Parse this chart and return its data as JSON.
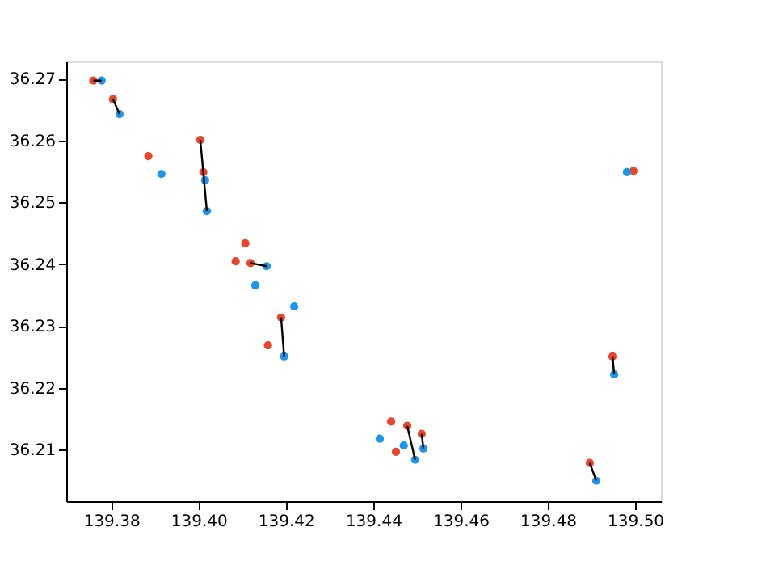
{
  "chart_data": {
    "type": "scatter",
    "xlim": [
      139.3697,
      139.5059
    ],
    "ylim": [
      36.2017,
      36.2728
    ],
    "xticks": [
      139.38,
      {
        "value": 139.4,
        "label": "139.40"
      },
      139.42,
      139.44,
      139.46,
      139.48,
      {
        "value": 139.5,
        "label": "139.50"
      }
    ],
    "yticks": [
      36.21,
      36.22,
      36.23,
      36.24,
      36.25,
      36.26,
      36.27
    ],
    "grid": false,
    "series": [
      {
        "color": "#e8452c",
        "x": [
          139.3759,
          139.3804,
          139.3885,
          139.4004,
          139.4011,
          139.4085,
          139.4107,
          139.4119,
          139.4189,
          139.4159,
          139.4441,
          139.4478,
          139.4511,
          139.4452,
          139.4896,
          139.4948,
          139.4996
        ],
        "values": [
          36.2697,
          36.2667,
          36.2575,
          36.2601,
          36.2549,
          36.2405,
          36.2434,
          36.2402,
          36.2314,
          36.2269,
          36.2146,
          36.2139,
          36.2126,
          36.2097,
          36.2079,
          36.2251,
          36.2551
        ]
      },
      {
        "color": "#1a96f0",
        "x": [
          139.3778,
          139.3819,
          139.3915,
          139.4015,
          139.4019,
          139.4156,
          139.413,
          139.4219,
          139.4196,
          139.4415,
          139.447,
          139.4496,
          139.4515,
          139.4911,
          139.4981,
          139.4952
        ],
        "values": [
          36.2697,
          36.2643,
          36.2546,
          36.2536,
          36.2486,
          36.2397,
          36.2366,
          36.2332,
          36.2251,
          36.2118,
          36.2107,
          36.2084,
          36.2102,
          36.205,
          36.2549,
          36.2222
        ]
      },
      {
        "type": "line",
        "color": "#000000",
        "x": [
          139.3759,
          139.3778
        ],
        "values": [
          36.2697,
          36.2697
        ]
      },
      {
        "type": "line",
        "color": "#000000",
        "x": [
          139.3804,
          139.3819
        ],
        "values": [
          36.2667,
          36.2643
        ]
      },
      {
        "type": "line",
        "color": "#000000",
        "x": [
          139.4004,
          139.4019
        ],
        "values": [
          36.2601,
          36.2486
        ]
      },
      {
        "type": "line",
        "color": "#000000",
        "x": [
          139.4119,
          139.4156
        ],
        "values": [
          36.2402,
          36.2397
        ]
      },
      {
        "type": "line",
        "color": "#000000",
        "x": [
          139.4189,
          139.4196
        ],
        "values": [
          36.2314,
          36.2251
        ]
      },
      {
        "type": "line",
        "color": "#000000",
        "x": [
          139.4478,
          139.4496
        ],
        "values": [
          36.2139,
          36.2084
        ]
      },
      {
        "type": "line",
        "color": "#000000",
        "x": [
          139.4511,
          139.4515
        ],
        "values": [
          36.2126,
          36.2102
        ]
      },
      {
        "type": "line",
        "color": "#000000",
        "x": [
          139.4896,
          139.4911
        ],
        "values": [
          36.2079,
          36.205
        ]
      },
      {
        "type": "line",
        "color": "#000000",
        "x": [
          139.4948,
          139.4952
        ],
        "values": [
          36.2251,
          36.2222
        ]
      }
    ]
  }
}
